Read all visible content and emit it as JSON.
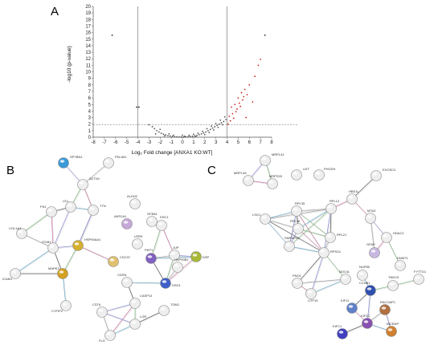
{
  "panels": {
    "a": {
      "letter": "A",
      "chart_data": {
        "type": "scatter",
        "xlabel": "Log₂ Fold change [ANXA1 KO:WT]",
        "ylabel": "-log10 (p-value)",
        "xlim": [
          -8,
          8
        ],
        "ylim": [
          0,
          20
        ],
        "x_ticks": [
          "-8",
          "-7",
          "-6",
          "-5",
          "-4",
          "-3",
          "-2",
          "-1",
          "0",
          "1",
          "2",
          "3",
          "4",
          "5",
          "6",
          "7",
          "8"
        ],
        "y_ticks": [
          "0",
          "1",
          "2",
          "3",
          "4",
          "5",
          "6",
          "7",
          "8",
          "9",
          "10",
          "11",
          "12",
          "13",
          "14",
          "15",
          "16",
          "17",
          "18",
          "19",
          "20"
        ],
        "fold_change_cutoffs": [
          -4,
          4
        ],
        "pvalue_cutoff": 1.9,
        "grid": false,
        "series": [
          {
            "color": "#222222",
            "points": [
              [
                -6.3,
                15.6
              ],
              [
                -4.1,
                4.6
              ],
              [
                -3.9,
                4.6
              ]
            ]
          },
          {
            "color": "#555555",
            "points": [
              [
                -3.0,
                1.9
              ],
              [
                -2.7,
                1.6
              ],
              [
                -2.5,
                1.3
              ],
              [
                -2.3,
                1.0
              ],
              [
                -2.1,
                0.8
              ],
              [
                -1.9,
                0.6
              ],
              [
                -1.7,
                0.45
              ],
              [
                -1.5,
                0.35
              ],
              [
                -1.3,
                0.25
              ],
              [
                -1.1,
                0.18
              ],
              [
                -0.9,
                0.12
              ],
              [
                -0.7,
                0.08
              ],
              [
                -0.5,
                0.05
              ],
              [
                -0.3,
                0.03
              ],
              [
                -0.1,
                0.02
              ],
              [
                0.1,
                0.02
              ],
              [
                0.3,
                0.04
              ],
              [
                0.5,
                0.07
              ],
              [
                0.7,
                0.1
              ],
              [
                0.9,
                0.14
              ],
              [
                1.1,
                0.2
              ],
              [
                1.3,
                0.28
              ],
              [
                1.5,
                0.38
              ],
              [
                1.7,
                0.5
              ],
              [
                1.9,
                0.65
              ],
              [
                2.1,
                0.8
              ],
              [
                2.3,
                1.0
              ],
              [
                2.5,
                1.2
              ],
              [
                2.7,
                1.4
              ],
              [
                2.9,
                1.6
              ],
              [
                3.1,
                1.8
              ],
              [
                3.3,
                2.0
              ],
              [
                3.5,
                2.2
              ],
              [
                3.7,
                2.4
              ],
              [
                3.9,
                2.7
              ],
              [
                -1.6,
                0.2
              ],
              [
                -0.8,
                0.3
              ],
              [
                0.2,
                0.15
              ],
              [
                0.6,
                0.3
              ],
              [
                1.0,
                0.45
              ],
              [
                1.4,
                0.6
              ],
              [
                1.8,
                0.9
              ],
              [
                2.2,
                1.3
              ],
              [
                2.6,
                1.7
              ],
              [
                3.0,
                2.1
              ],
              [
                3.4,
                2.6
              ],
              [
                3.8,
                3.1
              ],
              [
                2.0,
                0.4
              ],
              [
                2.4,
                0.7
              ],
              [
                2.8,
                1.1
              ],
              [
                3.2,
                1.5
              ],
              [
                3.6,
                1.9
              ],
              [
                1.2,
                0.1
              ],
              [
                -2.0,
                1.2
              ],
              [
                -2.4,
                0.5
              ],
              [
                -1.2,
                0.5
              ],
              [
                0.0,
                0.3
              ]
            ]
          },
          {
            "color": "#cc2222",
            "points": [
              [
                4.1,
                2.0
              ],
              [
                4.2,
                3.2
              ],
              [
                4.3,
                2.5
              ],
              [
                4.4,
                4.6
              ],
              [
                4.5,
                3.6
              ],
              [
                4.6,
                2.9
              ],
              [
                4.7,
                5.0
              ],
              [
                4.8,
                3.9
              ],
              [
                4.9,
                4.3
              ],
              [
                5.0,
                6.0
              ],
              [
                5.1,
                5.2
              ],
              [
                5.2,
                4.7
              ],
              [
                5.3,
                6.8
              ],
              [
                5.4,
                5.7
              ],
              [
                5.5,
                6.2
              ],
              [
                5.6,
                7.3
              ],
              [
                5.7,
                3.0
              ],
              [
                5.8,
                6.5
              ],
              [
                6.0,
                8.0
              ],
              [
                6.3,
                5.4
              ],
              [
                6.5,
                9.3
              ],
              [
                6.8,
                11.0
              ],
              [
                7.0,
                11.9
              ]
            ]
          },
          {
            "color": "#222222",
            "points": [
              [
                7.4,
                15.6
              ]
            ]
          }
        ]
      }
    },
    "b": {
      "letter": "B",
      "nodes": [
        {
          "id": "SPTBN1",
          "label": "SPTBN1"
        },
        {
          "id": "ACTN1",
          "label": "ACTN1"
        },
        {
          "id": "PDLIM1",
          "label": "PDLIM1"
        },
        {
          "id": "VCL",
          "label": "VCL"
        },
        {
          "id": "TTN",
          "label": "TTN"
        },
        {
          "id": "FN1",
          "label": "FN1"
        },
        {
          "id": "COL1A1",
          "label": "COL1A1"
        },
        {
          "id": "HSP90AA1",
          "label": "HSP90AA1"
        },
        {
          "id": "ITGB1",
          "label": "ITGB1"
        },
        {
          "id": "ICAM1",
          "label": "ICAM1"
        },
        {
          "id": "MAPK3",
          "label": "MAPK3"
        },
        {
          "id": "CYFIP2",
          "label": "CYFIP2"
        },
        {
          "id": "CDC37",
          "label": "CDC37"
        },
        {
          "id": "ALDH2",
          "label": "ALDH2"
        },
        {
          "id": "AKR1A1",
          "label": "AKR1A1"
        },
        {
          "id": "SF3B4",
          "label": "SF3B4"
        },
        {
          "id": "LRRK",
          "label": "LRRK"
        },
        {
          "id": "DSC1",
          "label": "DSC1"
        },
        {
          "id": "PKP1",
          "label": "PKP1"
        },
        {
          "id": "JUP",
          "label": "JUP"
        },
        {
          "id": "DSP",
          "label": "DSP"
        },
        {
          "id": "HSP90B1",
          "label": "HSP90B1"
        },
        {
          "id": "DSG1",
          "label": "DSG1"
        },
        {
          "id": "CDSN",
          "label": "CDSN"
        },
        {
          "id": "CASP14",
          "label": "CASP14"
        },
        {
          "id": "CSTA",
          "label": "CSTA"
        },
        {
          "id": "TGM1",
          "label": "TGM1"
        },
        {
          "id": "LOR",
          "label": "LOR"
        },
        {
          "id": "FLG",
          "label": "FLG"
        }
      ],
      "edges": [
        [
          "SPTBN1",
          "ACTN1"
        ],
        [
          "ACTN1",
          "VCL"
        ],
        [
          "ACTN1",
          "TTN"
        ],
        [
          "ACTN1",
          "PDLIM1"
        ],
        [
          "VCL",
          "TTN"
        ],
        [
          "VCL",
          "FN1"
        ],
        [
          "VCL",
          "ITGB1"
        ],
        [
          "FN1",
          "COL1A1"
        ],
        [
          "FN1",
          "ITGB1"
        ],
        [
          "COL1A1",
          "ITGB1"
        ],
        [
          "ITGB1",
          "ICAM1"
        ],
        [
          "ITGB1",
          "MAPK3"
        ],
        [
          "ITGB1",
          "HSP90AA1"
        ],
        [
          "HSP90AA1",
          "MAPK3"
        ],
        [
          "HSP90AA1",
          "CDC37"
        ],
        [
          "HSP90AA1",
          "TTN"
        ],
        [
          "MAPK3",
          "CYFIP2"
        ],
        [
          "MAPK3",
          "ICAM1"
        ],
        [
          "TTN",
          "HSP90AA1"
        ],
        [
          "DSC1",
          "PKP1"
        ],
        [
          "DSC1",
          "JUP"
        ],
        [
          "PKP1",
          "JUP"
        ],
        [
          "PKP1",
          "DSP"
        ],
        [
          "PKP1",
          "DSG1"
        ],
        [
          "JUP",
          "DSP"
        ],
        [
          "JUP",
          "DSG1"
        ],
        [
          "DSP",
          "DSG1"
        ],
        [
          "HSP90B1",
          "DSG1"
        ],
        [
          "CDSN",
          "DSG1"
        ],
        [
          "CDSN",
          "CASP14"
        ],
        [
          "CASP14",
          "CSTA"
        ],
        [
          "CASP14",
          "LOR"
        ],
        [
          "CASP14",
          "FLG"
        ],
        [
          "CSTA",
          "FLG"
        ],
        [
          "LOR",
          "FLG"
        ],
        [
          "LOR",
          "TGM1"
        ],
        [
          "CSTA",
          "LOR"
        ]
      ]
    },
    "c": {
      "letter": "C",
      "nodes": [
        {
          "id": "MRPL42",
          "label": "MRPL42"
        },
        {
          "id": "MRPL46",
          "label": "MRPL46"
        },
        {
          "id": "MRPS33",
          "label": "MRPS33"
        },
        {
          "id": "UXT",
          "label": "UXT"
        },
        {
          "id": "PHGDH",
          "label": "PHGDH"
        },
        {
          "id": "RPL35",
          "label": "RPL35"
        },
        {
          "id": "RPL12",
          "label": "RPL12"
        },
        {
          "id": "HBS1L",
          "label": "HBS1L"
        },
        {
          "id": "EXOSC4",
          "label": "EXOSC4"
        },
        {
          "id": "LSG1",
          "label": "LSG1"
        },
        {
          "id": "RPL36",
          "label": "RPL36"
        },
        {
          "id": "RPL21",
          "label": "RPL21"
        },
        {
          "id": "RPS24",
          "label": "RPS24"
        },
        {
          "id": "SNRNP23",
          "label": "SNRNP23"
        },
        {
          "id": "MTA3",
          "label": "MTA3"
        },
        {
          "id": "HDAC2",
          "label": "HDAC2"
        },
        {
          "id": "GFAP",
          "label": "GFAP"
        },
        {
          "id": "DNMT1",
          "label": "DNMT1"
        },
        {
          "id": "NUP85",
          "label": "NUP85"
        },
        {
          "id": "TNDC5",
          "label": "TNDC5"
        },
        {
          "id": "FYTTD1",
          "label": "FYTTD1"
        },
        {
          "id": "CCNB1",
          "label": "CCNB1"
        },
        {
          "id": "KIF11",
          "label": "KIF11"
        },
        {
          "id": "PNO1",
          "label": "PNO1"
        },
        {
          "id": "NOC4L",
          "label": "NOC4L"
        },
        {
          "id": "UTP15",
          "label": "UTP15"
        },
        {
          "id": "RACGAP1",
          "label": "RACGAP1"
        },
        {
          "id": "KIF2C",
          "label": "KIF2C"
        },
        {
          "id": "INCENP",
          "label": "INCENP"
        },
        {
          "id": "KIFC1",
          "label": "KIFC1"
        }
      ],
      "edges": [
        [
          "MRPL42",
          "MRPL46"
        ],
        [
          "MRPL42",
          "MRPS33"
        ],
        [
          "MRPL46",
          "MRPS33"
        ],
        [
          "RPL35",
          "RPL12"
        ],
        [
          "RPL35",
          "LSG1"
        ],
        [
          "RPL35",
          "RPL36"
        ],
        [
          "RPL35",
          "SNRNP23"
        ],
        [
          "RPL35",
          "RPL21"
        ],
        [
          "RPL35",
          "RPS24"
        ],
        [
          "RPL12",
          "LSG1"
        ],
        [
          "RPL12",
          "RPL36"
        ],
        [
          "RPL12",
          "RPL21"
        ],
        [
          "RPL12",
          "RPS24"
        ],
        [
          "RPL12",
          "SNRNP23"
        ],
        [
          "RPL12",
          "HBS1L"
        ],
        [
          "LSG1",
          "RPL36"
        ],
        [
          "LSG1",
          "SNRNP23"
        ],
        [
          "LSG1",
          "RPS24"
        ],
        [
          "RPL36",
          "SNRNP23"
        ],
        [
          "RPL36",
          "RPL21"
        ],
        [
          "RPL36",
          "RPS24"
        ],
        [
          "RPL21",
          "RPS24"
        ],
        [
          "SNRNP23",
          "RPS24"
        ],
        [
          "RPS24",
          "PNO1"
        ],
        [
          "RPS24",
          "UTP15"
        ],
        [
          "RPS24",
          "NOC4L"
        ],
        [
          "PNO1",
          "UTP15"
        ],
        [
          "PNO1",
          "NOC4L"
        ],
        [
          "NOC4L",
          "UTP15"
        ],
        [
          "HBS1L",
          "EXOSC4"
        ],
        [
          "MTA3",
          "HDAC2"
        ],
        [
          "HDAC2",
          "DNMT1"
        ],
        [
          "HDAC2",
          "GFAP"
        ],
        [
          "MTA3",
          "GFAP"
        ],
        [
          "NUP85",
          "CCNB1"
        ],
        [
          "CCNB1",
          "KIF11"
        ],
        [
          "CCNB1",
          "KIF2C"
        ],
        [
          "CCNB1",
          "TNDC5"
        ],
        [
          "KIF11",
          "KIF2C"
        ],
        [
          "KIF2C",
          "RACGAP1"
        ],
        [
          "KIF2C",
          "INCENP"
        ],
        [
          "KIF2C",
          "KIFC1"
        ],
        [
          "RACGAP1",
          "INCENP"
        ],
        [
          "TNDC5",
          "FYTTD1"
        ],
        [
          "HBS1L",
          "MTA3"
        ]
      ]
    }
  }
}
